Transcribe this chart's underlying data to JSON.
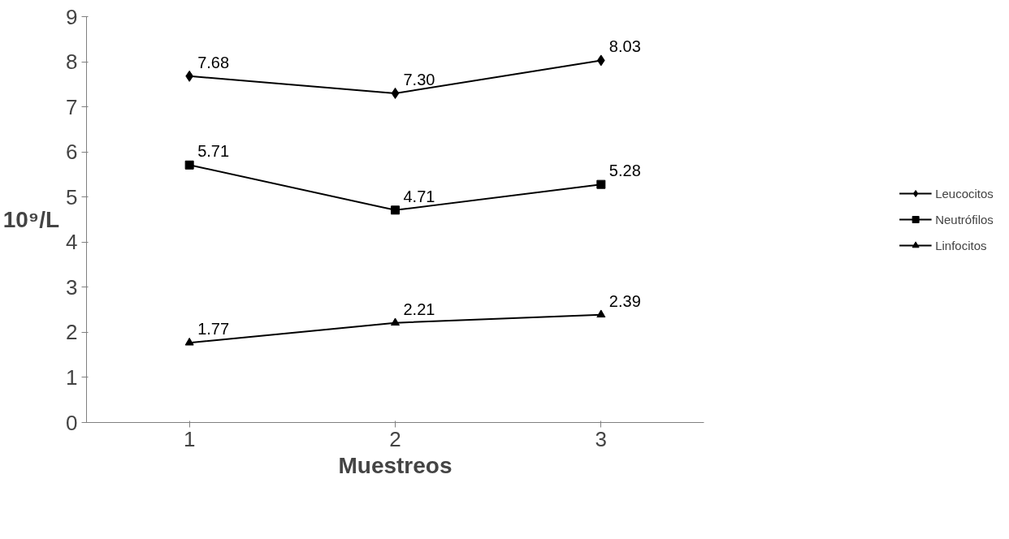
{
  "chart_data": {
    "type": "line",
    "xlabel": "Muestreos",
    "ylabel": "10⁹/L",
    "categories": [
      "1",
      "2",
      "3"
    ],
    "series": [
      {
        "name": "Leucocitos",
        "color": "#000000",
        "marker": "diamond",
        "values": [
          7.68,
          7.3,
          8.03
        ],
        "value_labels": [
          "7.68",
          "7.30",
          "8.03"
        ]
      },
      {
        "name": "Neutrófilos",
        "color": "#000000",
        "marker": "square",
        "values": [
          5.71,
          4.71,
          5.28
        ],
        "value_labels": [
          "5.71",
          "4.71",
          "5.28"
        ]
      },
      {
        "name": "Linfocitos",
        "color": "#000000",
        "marker": "triangle",
        "values": [
          1.77,
          2.21,
          2.39
        ],
        "value_labels": [
          "1.77",
          "2.21",
          "2.39"
        ]
      }
    ],
    "ylim": [
      0,
      9
    ],
    "yticks": [
      0,
      1,
      2,
      3,
      4,
      5,
      6,
      7,
      8,
      9
    ],
    "grid": false,
    "legend": "right",
    "line_style": "solid"
  }
}
